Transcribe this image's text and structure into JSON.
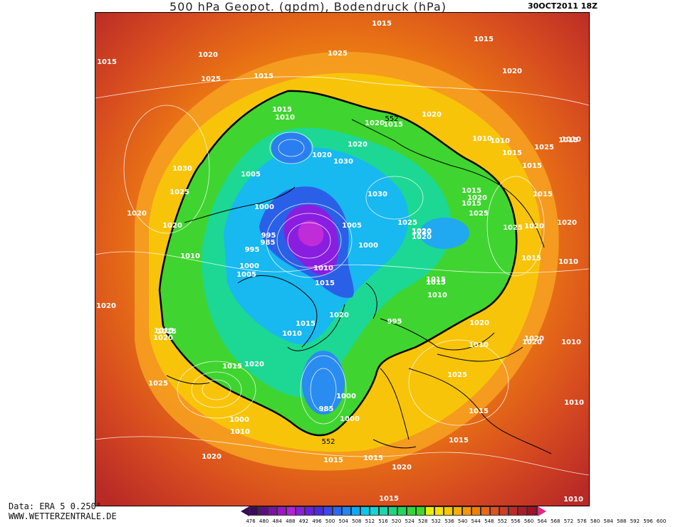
{
  "header": {
    "title": "500 hPa Geopot. (gpdm), Bodendruck (hPa)",
    "datetime": "30OCT2011 18Z"
  },
  "footer": {
    "source_line": "Data: ERA 5 0.250°",
    "website": "WWW.WETTERZENTRALE.DE"
  },
  "legend": {
    "labels": [
      "476",
      "480",
      "484",
      "488",
      "492",
      "496",
      "500",
      "504",
      "508",
      "512",
      "516",
      "520",
      "524",
      "528",
      "532",
      "536",
      "540",
      "544",
      "548",
      "552",
      "556",
      "560",
      "564",
      "568",
      "572",
      "576",
      "580",
      "584",
      "588",
      "592",
      "596",
      "600"
    ],
    "colors": [
      "#3a0b57",
      "#5a0f7c",
      "#7a13a0",
      "#9c17c4",
      "#b81ee0",
      "#8c1ed8",
      "#6a1fe0",
      "#4a2ae4",
      "#3a48f0",
      "#2a68f4",
      "#1a88f8",
      "#10a8f8",
      "#08c8f0",
      "#10d8d0",
      "#18d8a8",
      "#18d880",
      "#20d858",
      "#30d838",
      "#40d820",
      "#e8f000",
      "#f8e000",
      "#f8c800",
      "#f8b000",
      "#f89800",
      "#f08000",
      "#e86818",
      "#e05020",
      "#d03c24",
      "#c02828",
      "#b01a28",
      "#a01028",
      "#f02080"
    ]
  },
  "map": {
    "contour_552_label": "552",
    "pressure_labels": [
      "1015",
      "1015",
      "1020",
      "1015",
      "1025",
      "1015",
      "1020",
      "1030",
      "1020",
      "1025",
      "1020",
      "1020",
      "1025",
      "1015",
      "1010",
      "1015",
      "1020",
      "1010",
      "1005",
      "1000",
      "995",
      "995",
      "1000",
      "1005",
      "1010",
      "1015",
      "1030",
      "1015",
      "1020",
      "1020",
      "1005",
      "1000",
      "1010",
      "1015",
      "1015",
      "1025",
      "1020",
      "1020",
      "1010",
      "1010",
      "1020",
      "1015",
      "1010",
      "1020",
      "1015",
      "1015",
      "1010",
      "1025",
      "1025",
      "1020",
      "1015",
      "985",
      "995",
      "985",
      "1000",
      "1000",
      "1010",
      "1020",
      "1015",
      "1015",
      "1015",
      "1020",
      "1010",
      "1010",
      "1015",
      "1025",
      "1015",
      "1020",
      "1015",
      "1020",
      "1020",
      "1025",
      "1020",
      "1015",
      "1030",
      "1020",
      "1015",
      "1010",
      "1010",
      "1020",
      "1025",
      "1015",
      "1020",
      "1020",
      "1010",
      "1015",
      "1000",
      "1015"
    ]
  }
}
